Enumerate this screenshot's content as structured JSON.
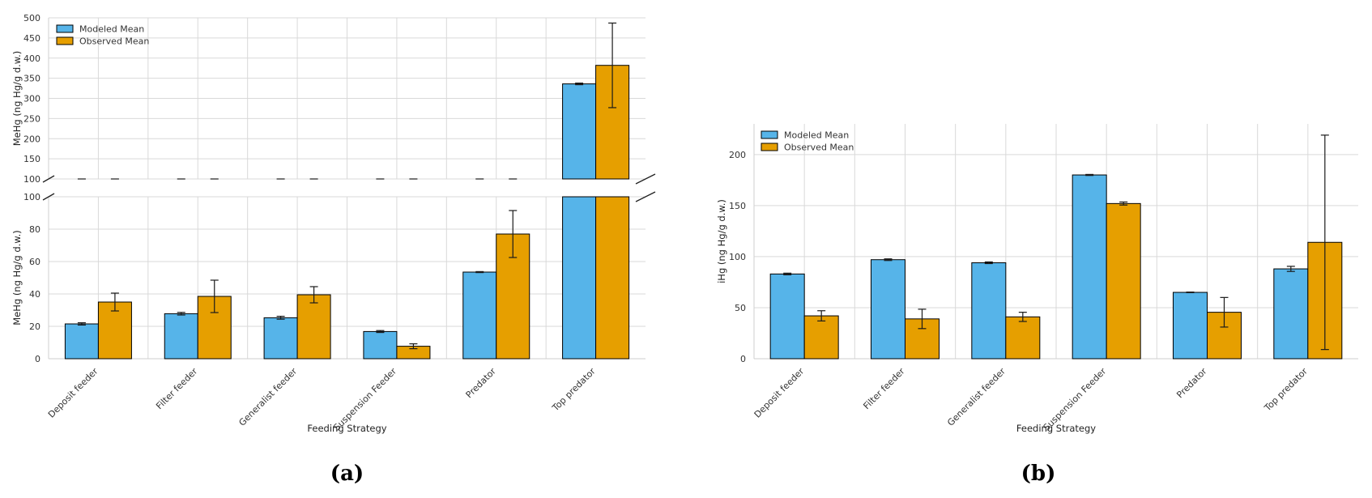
{
  "chart_data": [
    {
      "panel_label": "(a)",
      "type": "bar",
      "broken_axis": true,
      "categories": [
        "Deposit feeder",
        "Filter feeder",
        "Generalist feeder",
        "Suspension Feeder",
        "Predator",
        "Top predator"
      ],
      "series": [
        {
          "name": "Modeled Mean",
          "color": "#56b4e9",
          "values": [
            21.5,
            27.8,
            25.3,
            16.8,
            53.5,
            336
          ],
          "errors": [
            0.7,
            0.8,
            0.9,
            0.6,
            0.3,
            2
          ]
        },
        {
          "name": "Observed Mean",
          "color": "#e69f00",
          "values": [
            35,
            38.5,
            39.5,
            7.7,
            77,
            382
          ],
          "errors": [
            5.5,
            10,
            5,
            1.5,
            14.5,
            105
          ]
        }
      ],
      "xlabel": "Feeding Strategy",
      "ylabel": "MeHg (ng Hg/g d.w.)",
      "upper_ylim": [
        100,
        500
      ],
      "upper_yticks": [
        100,
        150,
        200,
        250,
        300,
        350,
        400,
        450,
        500
      ],
      "lower_ylim": [
        0,
        100
      ],
      "lower_yticks": [
        0,
        20,
        40,
        60,
        80,
        100
      ],
      "grid": true,
      "legend": "top-left"
    },
    {
      "panel_label": "(b)",
      "type": "bar",
      "categories": [
        "Deposit feeder",
        "Filter feeder",
        "Generalist feeder",
        "Suspension Feeder",
        "Predator",
        "Top predator"
      ],
      "series": [
        {
          "name": "Modeled Mean",
          "color": "#56b4e9",
          "values": [
            83,
            97,
            94,
            180,
            65,
            88
          ],
          "errors": [
            0.8,
            0.8,
            0.8,
            0.5,
            0.3,
            2.5
          ]
        },
        {
          "name": "Observed Mean",
          "color": "#e69f00",
          "values": [
            42,
            39,
            41,
            152,
            45.5,
            114
          ],
          "errors": [
            5,
            9.5,
            4.5,
            1.5,
            14.5,
            105
          ]
        }
      ],
      "xlabel": "Feeding Strategy",
      "ylabel": "iHg (ng Hg/g d.w.)",
      "ylim": [
        0,
        230
      ],
      "yticks": [
        0,
        50,
        100,
        150,
        200
      ],
      "grid": true,
      "legend": "top-left"
    }
  ]
}
